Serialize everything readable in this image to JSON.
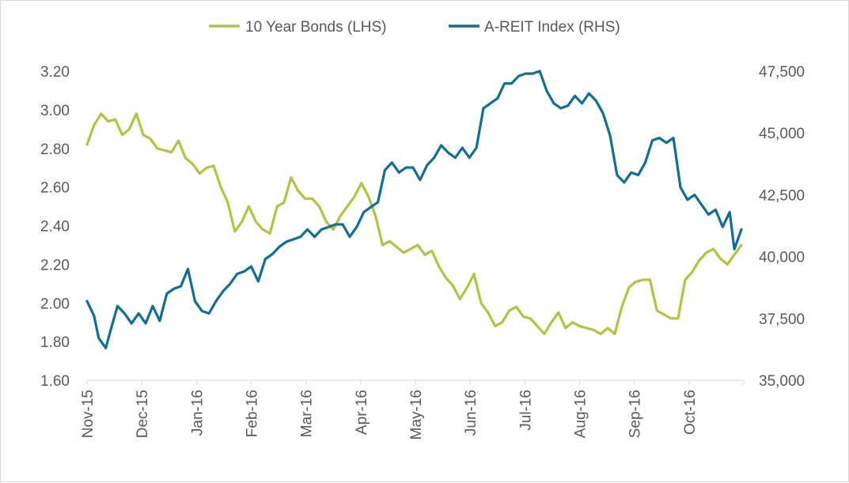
{
  "chart_data": {
    "type": "line",
    "title": "",
    "legend": {
      "placement": "top-center",
      "entries": [
        "10 Year Bonds (LHS)",
        "A-REIT Index (RHS)"
      ]
    },
    "x_tick_labels": [
      "Nov-15",
      "Dec-15",
      "Jan-16",
      "Feb-16",
      "Mar-16",
      "Apr-16",
      "May-16",
      "Jun-16",
      "Jul-16",
      "Aug-16",
      "Sep-16",
      "Oct-16"
    ],
    "y_left": {
      "min": 1.6,
      "max": 3.2,
      "ticks": [
        "1.60",
        "1.80",
        "2.00",
        "2.20",
        "2.40",
        "2.60",
        "2.80",
        "3.00",
        "3.20"
      ]
    },
    "y_right": {
      "min": 35000,
      "max": 47500,
      "ticks": [
        "35,000",
        "37,500",
        "40,000",
        "42,500",
        "45,000",
        "47,500"
      ]
    },
    "grid": false,
    "series": [
      {
        "name": "10 Year Bonds (LHS)",
        "axis": "left",
        "color": "#a9c940",
        "points": [
          [
            0,
            2.82
          ],
          [
            3,
            2.92
          ],
          [
            6,
            2.98
          ],
          [
            9,
            2.94
          ],
          [
            12,
            2.95
          ],
          [
            15,
            2.87
          ],
          [
            18,
            2.9
          ],
          [
            21,
            2.98
          ],
          [
            24,
            2.87
          ],
          [
            27,
            2.85
          ],
          [
            30,
            2.8
          ],
          [
            33,
            2.79
          ],
          [
            36,
            2.78
          ],
          [
            39,
            2.84
          ],
          [
            42,
            2.75
          ],
          [
            45,
            2.72
          ],
          [
            48,
            2.67
          ],
          [
            51,
            2.7
          ],
          [
            54,
            2.71
          ],
          [
            57,
            2.6
          ],
          [
            60,
            2.52
          ],
          [
            63,
            2.37
          ],
          [
            66,
            2.42
          ],
          [
            69,
            2.5
          ],
          [
            72,
            2.42
          ],
          [
            75,
            2.38
          ],
          [
            78,
            2.36
          ],
          [
            81,
            2.5
          ],
          [
            84,
            2.52
          ],
          [
            87,
            2.65
          ],
          [
            90,
            2.58
          ],
          [
            93,
            2.54
          ],
          [
            96,
            2.54
          ],
          [
            99,
            2.5
          ],
          [
            102,
            2.42
          ],
          [
            105,
            2.38
          ],
          [
            108,
            2.45
          ],
          [
            111,
            2.5
          ],
          [
            114,
            2.55
          ],
          [
            117,
            2.62
          ],
          [
            120,
            2.55
          ],
          [
            123,
            2.45
          ],
          [
            126,
            2.3
          ],
          [
            129,
            2.32
          ],
          [
            132,
            2.29
          ],
          [
            135,
            2.26
          ],
          [
            138,
            2.28
          ],
          [
            141,
            2.3
          ],
          [
            144,
            2.25
          ],
          [
            147,
            2.27
          ],
          [
            150,
            2.19
          ],
          [
            153,
            2.13
          ],
          [
            156,
            2.09
          ],
          [
            159,
            2.02
          ],
          [
            162,
            2.08
          ],
          [
            165,
            2.15
          ],
          [
            168,
            2.0
          ],
          [
            171,
            1.95
          ],
          [
            174,
            1.88
          ],
          [
            177,
            1.9
          ],
          [
            180,
            1.96
          ],
          [
            183,
            1.98
          ],
          [
            186,
            1.93
          ],
          [
            189,
            1.92
          ],
          [
            192,
            1.88
          ],
          [
            195,
            1.84
          ],
          [
            198,
            1.9
          ],
          [
            201,
            1.95
          ],
          [
            204,
            1.87
          ],
          [
            207,
            1.9
          ],
          [
            210,
            1.88
          ],
          [
            213,
            1.87
          ],
          [
            216,
            1.86
          ],
          [
            219,
            1.84
          ],
          [
            222,
            1.87
          ],
          [
            225,
            1.84
          ],
          [
            228,
            1.98
          ],
          [
            231,
            2.08
          ],
          [
            234,
            2.11
          ],
          [
            237,
            2.12
          ],
          [
            240,
            2.12
          ],
          [
            243,
            1.96
          ],
          [
            246,
            1.94
          ],
          [
            249,
            1.92
          ],
          [
            252,
            1.92
          ],
          [
            255,
            2.12
          ],
          [
            258,
            2.16
          ],
          [
            261,
            2.22
          ],
          [
            264,
            2.26
          ],
          [
            267,
            2.28
          ],
          [
            270,
            2.23
          ],
          [
            273,
            2.2
          ],
          [
            276,
            2.25
          ],
          [
            279,
            2.3
          ]
        ]
      },
      {
        "name": "A-REIT Index (RHS)",
        "axis": "right",
        "color": "#0f6f96",
        "points": [
          [
            0,
            38.2
          ],
          [
            3,
            37.6
          ],
          [
            5,
            36.7
          ],
          [
            8,
            36.3
          ],
          [
            10,
            37.0
          ],
          [
            13,
            38.0
          ],
          [
            16,
            37.7
          ],
          [
            19,
            37.3
          ],
          [
            22,
            37.7
          ],
          [
            25,
            37.3
          ],
          [
            28,
            38.0
          ],
          [
            31,
            37.4
          ],
          [
            34,
            38.5
          ],
          [
            37,
            38.7
          ],
          [
            40,
            38.8
          ],
          [
            43,
            39.5
          ],
          [
            46,
            38.2
          ],
          [
            49,
            37.8
          ],
          [
            52,
            37.7
          ],
          [
            55,
            38.2
          ],
          [
            58,
            38.6
          ],
          [
            61,
            38.9
          ],
          [
            64,
            39.3
          ],
          [
            67,
            39.4
          ],
          [
            70,
            39.6
          ],
          [
            73,
            39.0
          ],
          [
            76,
            39.9
          ],
          [
            79,
            40.1
          ],
          [
            82,
            40.4
          ],
          [
            85,
            40.6
          ],
          [
            88,
            40.7
          ],
          [
            91,
            40.8
          ],
          [
            94,
            41.1
          ],
          [
            97,
            40.8
          ],
          [
            100,
            41.1
          ],
          [
            103,
            41.2
          ],
          [
            106,
            41.3
          ],
          [
            109,
            41.3
          ],
          [
            112,
            40.8
          ],
          [
            115,
            41.2
          ],
          [
            118,
            41.8
          ],
          [
            121,
            42.0
          ],
          [
            124,
            42.2
          ],
          [
            127,
            43.5
          ],
          [
            130,
            43.8
          ],
          [
            133,
            43.4
          ],
          [
            136,
            43.6
          ],
          [
            139,
            43.6
          ],
          [
            142,
            43.1
          ],
          [
            145,
            43.7
          ],
          [
            148,
            44.0
          ],
          [
            151,
            44.5
          ],
          [
            154,
            44.2
          ],
          [
            157,
            44.0
          ],
          [
            160,
            44.4
          ],
          [
            163,
            44.0
          ],
          [
            166,
            44.4
          ],
          [
            169,
            46.0
          ],
          [
            172,
            46.2
          ],
          [
            175,
            46.4
          ],
          [
            178,
            47.0
          ],
          [
            181,
            47.0
          ],
          [
            184,
            47.3
          ],
          [
            187,
            47.4
          ],
          [
            190,
            47.4
          ],
          [
            193,
            47.5
          ],
          [
            196,
            46.7
          ],
          [
            199,
            46.2
          ],
          [
            202,
            46.0
          ],
          [
            205,
            46.1
          ],
          [
            208,
            46.5
          ],
          [
            211,
            46.2
          ],
          [
            214,
            46.6
          ],
          [
            217,
            46.3
          ],
          [
            220,
            45.8
          ],
          [
            223,
            44.9
          ],
          [
            226,
            43.3
          ],
          [
            229,
            43.0
          ],
          [
            232,
            43.4
          ],
          [
            235,
            43.3
          ],
          [
            238,
            43.8
          ],
          [
            241,
            44.7
          ],
          [
            244,
            44.8
          ],
          [
            247,
            44.6
          ],
          [
            250,
            44.8
          ],
          [
            253,
            42.8
          ],
          [
            256,
            42.3
          ],
          [
            259,
            42.5
          ],
          [
            262,
            42.1
          ],
          [
            265,
            41.7
          ],
          [
            268,
            41.9
          ],
          [
            271,
            41.2
          ],
          [
            274,
            41.8
          ],
          [
            276,
            40.3
          ],
          [
            279,
            41.1
          ]
        ]
      }
    ]
  }
}
